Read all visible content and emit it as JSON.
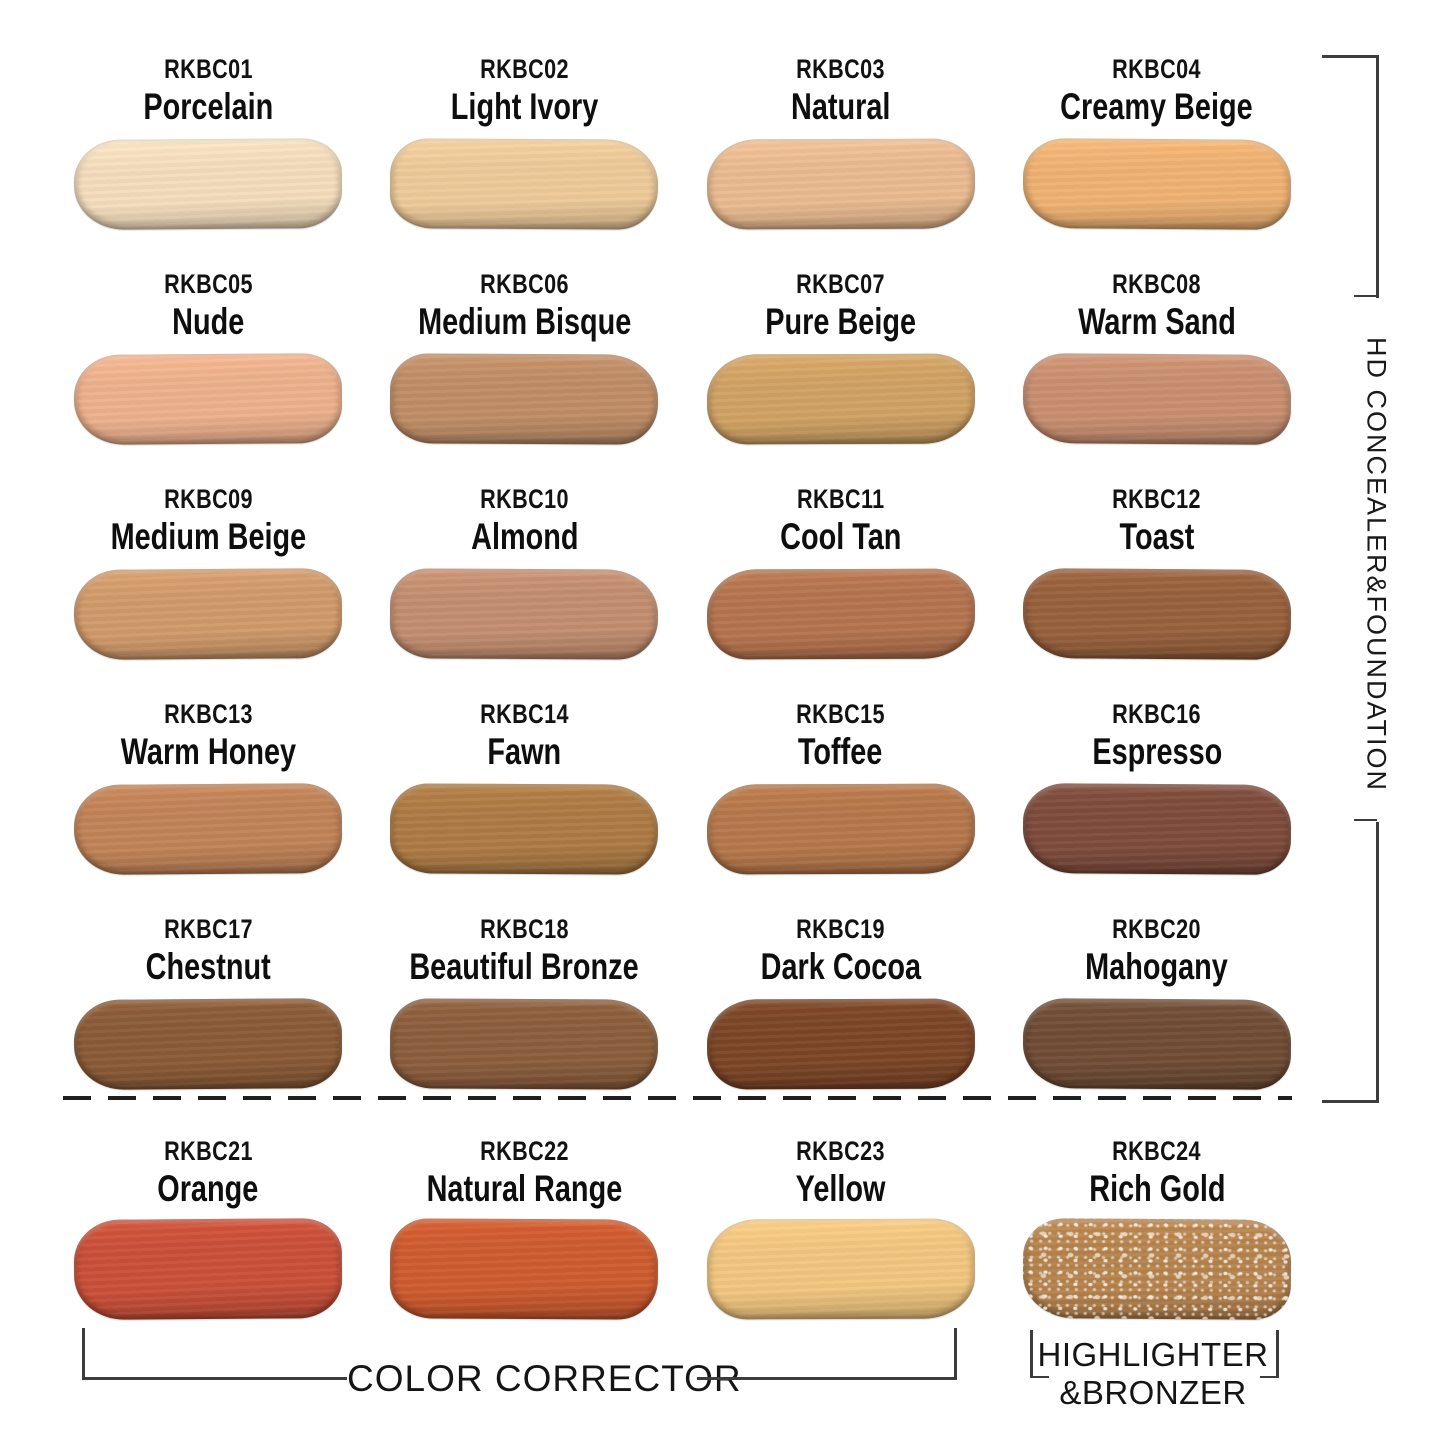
{
  "page": {
    "background": "#ffffff"
  },
  "groups": {
    "hd_concealer_foundation": {
      "label": "HD CONCEALER&FOUNDATION"
    },
    "color_corrector": {
      "label": "COLOR CORRECTOR"
    },
    "highlighter_bronzer": {
      "label_line1": "HIGHLIGHTER",
      "label_line2": "&BRONZER"
    }
  },
  "shades": [
    {
      "code": "RKBC01",
      "name": "Porcelain",
      "color": "#f3dcbc",
      "group": "hd_concealer_foundation"
    },
    {
      "code": "RKBC02",
      "name": "Light Ivory",
      "color": "#ecc998",
      "group": "hd_concealer_foundation"
    },
    {
      "code": "RKBC03",
      "name": "Natural",
      "color": "#e9ba90",
      "group": "hd_concealer_foundation"
    },
    {
      "code": "RKBC04",
      "name": "Creamy Beige",
      "color": "#eeb172",
      "group": "hd_concealer_foundation"
    },
    {
      "code": "RKBC05",
      "name": "Nude",
      "color": "#ecb08c",
      "group": "hd_concealer_foundation"
    },
    {
      "code": "RKBC06",
      "name": "Medium Bisque",
      "color": "#bf8d66",
      "group": "hd_concealer_foundation"
    },
    {
      "code": "RKBC07",
      "name": "Pure Beige",
      "color": "#d0a163",
      "group": "hd_concealer_foundation"
    },
    {
      "code": "RKBC08",
      "name": "Warm Sand",
      "color": "#c88e70",
      "group": "hd_concealer_foundation"
    },
    {
      "code": "RKBC09",
      "name": "Medium Beige",
      "color": "#d09a6a",
      "group": "hd_concealer_foundation"
    },
    {
      "code": "RKBC10",
      "name": "Almond",
      "color": "#c28d6f",
      "group": "hd_concealer_foundation"
    },
    {
      "code": "RKBC11",
      "name": "Cool Tan",
      "color": "#b4734e",
      "group": "hd_concealer_foundation"
    },
    {
      "code": "RKBC12",
      "name": "Toast",
      "color": "#97603c",
      "group": "hd_concealer_foundation"
    },
    {
      "code": "RKBC13",
      "name": "Warm Honey",
      "color": "#c08256",
      "group": "hd_concealer_foundation"
    },
    {
      "code": "RKBC14",
      "name": "Fawn",
      "color": "#ad7a43",
      "group": "hd_concealer_foundation"
    },
    {
      "code": "RKBC15",
      "name": "Toffee",
      "color": "#b5774a",
      "group": "hd_concealer_foundation"
    },
    {
      "code": "RKBC16",
      "name": "Espresso",
      "color": "#7d4b3b",
      "group": "hd_concealer_foundation"
    },
    {
      "code": "RKBC17",
      "name": "Chestnut",
      "color": "#8a5a36",
      "group": "hd_concealer_foundation"
    },
    {
      "code": "RKBC18",
      "name": "Beautiful Bronze",
      "color": "#8b5d3c",
      "group": "hd_concealer_foundation"
    },
    {
      "code": "RKBC19",
      "name": "Dark Cocoa",
      "color": "#7b4526",
      "group": "hd_concealer_foundation"
    },
    {
      "code": "RKBC20",
      "name": "Mahogany",
      "color": "#6f4c35",
      "group": "hd_concealer_foundation"
    },
    {
      "code": "RKBC21",
      "name": "Orange",
      "color": "#c94f38",
      "group": "color_corrector"
    },
    {
      "code": "RKBC22",
      "name": "Natural Range",
      "color": "#cd5a2e",
      "group": "color_corrector"
    },
    {
      "code": "RKBC23",
      "name": "Yellow",
      "color": "#f1c57e",
      "group": "color_corrector"
    },
    {
      "code": "RKBC24",
      "name": "Rich Gold",
      "color": "#b5824c",
      "texture": "sparkle",
      "group": "highlighter_bronzer"
    }
  ]
}
